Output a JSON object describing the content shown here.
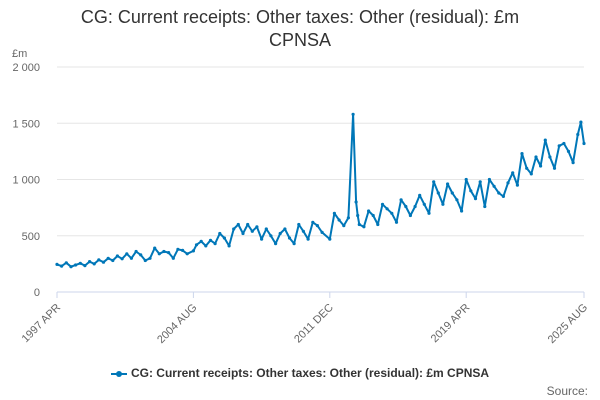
{
  "title_line1": "CG: Current receipts: Other taxes: Other (residual): £m",
  "title_line2": "CPNSA",
  "source_label": "Source:",
  "colors": {
    "series": "#0077b8",
    "grid": "#e6e6e6",
    "axis": "#ccd6eb"
  },
  "chart_data": {
    "type": "line",
    "title": "CG: Current receipts: Other taxes: Other (residual): £m CPNSA",
    "xlabel": "",
    "ylabel": "£m",
    "ylim": [
      0,
      2000
    ],
    "yticks": [
      "0",
      "500",
      "1 000",
      "1 500",
      "2 000"
    ],
    "ytick_values": [
      0,
      500,
      1000,
      1500,
      2000
    ],
    "xlim": [
      "1997-04",
      "2025-08"
    ],
    "xticks": [
      "1997 APR",
      "2004 AUG",
      "2011 DEC",
      "2019 APR",
      "2025 AUG"
    ],
    "xtick_values": [
      "1997-04",
      "2004-08",
      "2011-12",
      "2019-04",
      "2025-08"
    ],
    "legend": "bottom-center",
    "series": [
      {
        "name": "CG: Current receipts: Other taxes: Other (residual): £m CPNSA",
        "x": [
          "1997-04",
          "1997-07",
          "1997-10",
          "1998-01",
          "1998-04",
          "1998-07",
          "1998-10",
          "1999-01",
          "1999-04",
          "1999-07",
          "1999-10",
          "2000-01",
          "2000-04",
          "2000-07",
          "2000-10",
          "2001-01",
          "2001-04",
          "2001-07",
          "2001-10",
          "2002-01",
          "2002-04",
          "2002-07",
          "2002-10",
          "2003-01",
          "2003-04",
          "2003-07",
          "2003-10",
          "2004-01",
          "2004-04",
          "2004-08",
          "2004-10",
          "2005-01",
          "2005-04",
          "2005-07",
          "2005-10",
          "2006-01",
          "2006-04",
          "2006-07",
          "2006-10",
          "2007-01",
          "2007-04",
          "2007-07",
          "2007-10",
          "2008-01",
          "2008-04",
          "2008-07",
          "2008-10",
          "2009-01",
          "2009-04",
          "2009-07",
          "2009-10",
          "2010-01",
          "2010-04",
          "2010-07",
          "2010-10",
          "2011-01",
          "2011-04",
          "2011-07",
          "2011-12",
          "2012-03",
          "2012-06",
          "2012-09",
          "2012-12",
          "2013-03",
          "2013-05",
          "2013-06",
          "2013-07",
          "2013-10",
          "2014-01",
          "2014-04",
          "2014-07",
          "2014-10",
          "2015-01",
          "2015-04",
          "2015-07",
          "2015-10",
          "2016-01",
          "2016-04",
          "2016-07",
          "2016-10",
          "2017-01",
          "2017-04",
          "2017-07",
          "2017-10",
          "2018-01",
          "2018-04",
          "2018-07",
          "2018-10",
          "2019-01",
          "2019-04",
          "2019-07",
          "2019-10",
          "2020-01",
          "2020-04",
          "2020-07",
          "2020-10",
          "2021-01",
          "2021-04",
          "2021-07",
          "2021-10",
          "2022-01",
          "2022-04",
          "2022-07",
          "2022-10",
          "2023-01",
          "2023-04",
          "2023-07",
          "2023-10",
          "2024-01",
          "2024-04",
          "2024-07",
          "2024-10",
          "2025-01",
          "2025-04",
          "2025-06",
          "2025-08"
        ],
        "values": [
          245,
          230,
          260,
          225,
          240,
          255,
          235,
          270,
          250,
          285,
          265,
          300,
          280,
          320,
          295,
          340,
          300,
          360,
          330,
          280,
          300,
          390,
          340,
          360,
          350,
          300,
          380,
          370,
          340,
          365,
          420,
          450,
          410,
          460,
          430,
          520,
          480,
          410,
          560,
          600,
          520,
          600,
          540,
          580,
          470,
          560,
          500,
          430,
          520,
          560,
          480,
          430,
          600,
          540,
          470,
          620,
          590,
          530,
          470,
          700,
          640,
          590,
          660,
          1580,
          800,
          680,
          600,
          580,
          720,
          680,
          600,
          780,
          740,
          700,
          620,
          820,
          760,
          680,
          760,
          860,
          780,
          700,
          980,
          880,
          780,
          960,
          880,
          820,
          720,
          1000,
          900,
          830,
          980,
          760,
          1000,
          940,
          880,
          850,
          970,
          1060,
          950,
          1230,
          1100,
          1050,
          1200,
          1120,
          1350,
          1200,
          1100,
          1300,
          1320,
          1250,
          1150,
          1400,
          1510,
          1320
        ]
      }
    ]
  },
  "legend_label": "CG: Current receipts: Other taxes: Other (residual): £m CPNSA"
}
